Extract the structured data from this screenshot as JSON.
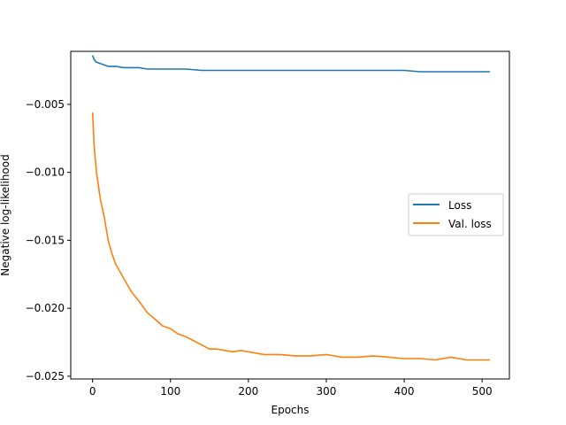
{
  "chart_data": {
    "type": "line",
    "title": "",
    "xlabel": "Epochs",
    "ylabel": "Negative log-likelihood",
    "xlim": [
      -28,
      535
    ],
    "ylim": [
      -0.0252,
      -0.0011
    ],
    "xticks": [
      0,
      100,
      200,
      300,
      400,
      500
    ],
    "xtick_labels": [
      "0",
      "100",
      "200",
      "300",
      "400",
      "500"
    ],
    "yticks": [
      -0.025,
      -0.02,
      -0.015,
      -0.01,
      -0.005
    ],
    "ytick_labels": [
      "−0.025",
      "−0.020",
      "−0.015",
      "−0.010",
      "−0.005"
    ],
    "grid": false,
    "legend_position": "center-right",
    "series": [
      {
        "name": "Loss",
        "color": "#1f77b4",
        "x": [
          0,
          2,
          5,
          10,
          15,
          20,
          30,
          40,
          50,
          60,
          70,
          80,
          90,
          100,
          120,
          140,
          160,
          180,
          200,
          220,
          240,
          260,
          280,
          300,
          320,
          340,
          360,
          380,
          400,
          420,
          440,
          460,
          480,
          500,
          510
        ],
        "y": [
          -0.0014,
          -0.0017,
          -0.0019,
          -0.002,
          -0.0021,
          -0.0022,
          -0.0022,
          -0.0023,
          -0.0023,
          -0.0023,
          -0.0024,
          -0.0024,
          -0.0024,
          -0.0024,
          -0.0024,
          -0.0025,
          -0.0025,
          -0.0025,
          -0.0025,
          -0.0025,
          -0.0025,
          -0.0025,
          -0.0025,
          -0.0025,
          -0.0025,
          -0.0025,
          -0.0025,
          -0.0025,
          -0.0025,
          -0.0026,
          -0.0026,
          -0.0026,
          -0.0026,
          -0.0026,
          -0.0026
        ]
      },
      {
        "name": "Val. loss",
        "color": "#ff7f0e",
        "x": [
          0,
          2,
          5,
          10,
          15,
          20,
          25,
          30,
          40,
          50,
          60,
          70,
          80,
          90,
          100,
          110,
          120,
          130,
          140,
          150,
          160,
          170,
          180,
          190,
          200,
          220,
          240,
          260,
          280,
          300,
          320,
          340,
          360,
          380,
          400,
          420,
          440,
          460,
          480,
          500,
          510
        ],
        "y": [
          -0.0056,
          -0.008,
          -0.01,
          -0.012,
          -0.0133,
          -0.015,
          -0.016,
          -0.0168,
          -0.0178,
          -0.0188,
          -0.0195,
          -0.0203,
          -0.0208,
          -0.0213,
          -0.0215,
          -0.0219,
          -0.0221,
          -0.0224,
          -0.0227,
          -0.023,
          -0.023,
          -0.0231,
          -0.0232,
          -0.0231,
          -0.0232,
          -0.0234,
          -0.0234,
          -0.0235,
          -0.0235,
          -0.0234,
          -0.0236,
          -0.0236,
          -0.0235,
          -0.0236,
          -0.0237,
          -0.0237,
          -0.0238,
          -0.0236,
          -0.0238,
          -0.0238,
          -0.0238
        ]
      }
    ]
  }
}
